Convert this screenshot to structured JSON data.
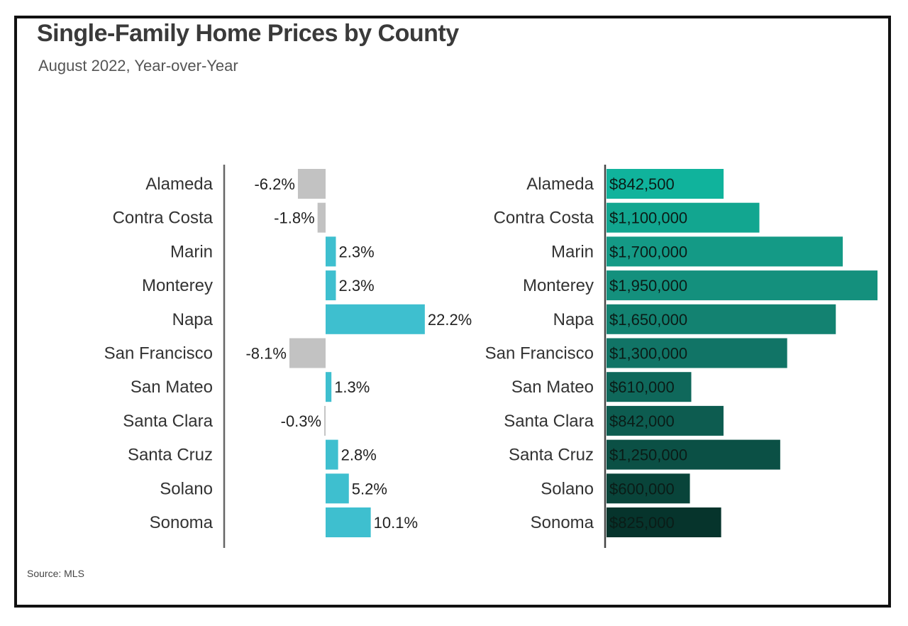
{
  "title": "Single-Family Home Prices by County",
  "subtitle": "August 2022, Year-over-Year",
  "source": "Source: MLS",
  "chart_data": [
    {
      "type": "bar",
      "orientation": "horizontal",
      "categories": [
        "Alameda",
        "Contra Costa",
        "Marin",
        "Monterey",
        "Napa",
        "San Francisco",
        "San Mateo",
        "Santa Clara",
        "Santa Cruz",
        "Solano",
        "Sonoma"
      ],
      "values": [
        -6.2,
        -1.8,
        2.3,
        2.3,
        22.2,
        -8.1,
        1.3,
        -0.3,
        2.8,
        5.2,
        10.1
      ],
      "labels": [
        "-6.2%",
        "-1.8%",
        "2.3%",
        "2.3%",
        "22.2%",
        "-8.1%",
        "1.3%",
        "-0.3%",
        "2.8%",
        "5.2%",
        "10.1%"
      ],
      "colors": {
        "positive": "#3ebfcf",
        "negative": "#c2c2c2"
      }
    },
    {
      "type": "bar",
      "orientation": "horizontal",
      "categories": [
        "Alameda",
        "Contra Costa",
        "Marin",
        "Monterey",
        "Napa",
        "San Francisco",
        "San Mateo",
        "Santa Clara",
        "Santa Cruz",
        "Solano",
        "Sonoma"
      ],
      "values": [
        842500,
        1100000,
        1700000,
        1950000,
        1650000,
        1300000,
        610000,
        842000,
        1250000,
        600000,
        825000
      ],
      "labels": [
        "$842,500",
        "$1,100,000",
        "$1,700,000",
        "$1,950,000",
        "$1,650,000",
        "$1,300,000",
        "$610,000",
        "$842,000",
        "$1,250,000",
        "$600,000",
        "$825,000"
      ],
      "colors": [
        "#10b39c",
        "#12a690",
        "#149a86",
        "#14907d",
        "#138271",
        "#117466",
        "#0f685b",
        "#0d5c50",
        "#0b5045",
        "#09443a",
        "#06342c"
      ]
    }
  ]
}
